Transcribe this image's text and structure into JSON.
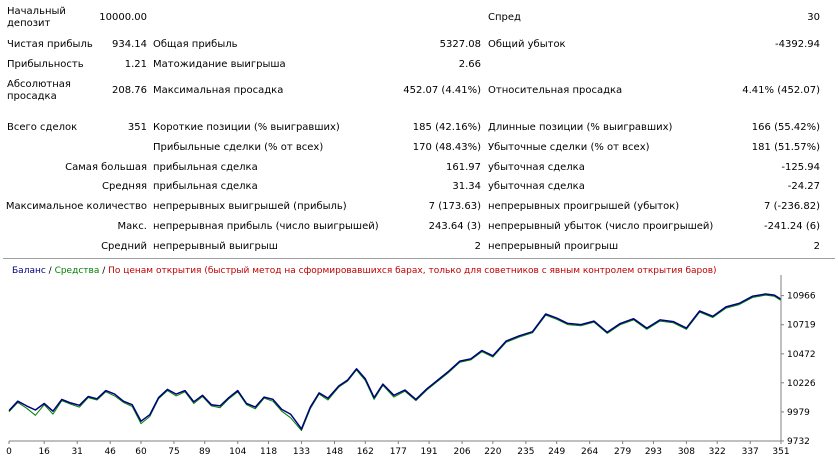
{
  "report": {
    "initial_deposit": {
      "label": "Начальный депозит",
      "value": "10000.00"
    },
    "spread": {
      "label": "Спред",
      "value": "30"
    },
    "net_profit": {
      "label": "Чистая прибыль",
      "value": "934.14"
    },
    "gross_profit": {
      "label": "Общая прибыль",
      "value": "5327.08"
    },
    "gross_loss": {
      "label": "Общий убыток",
      "value": "-4392.94"
    },
    "profit_factor": {
      "label": "Прибыльность",
      "value": "1.21"
    },
    "expected_payoff": {
      "label": "Матожидание выигрыша",
      "value": "2.66"
    },
    "absolute_drawdown": {
      "label": "Абсолютная просадка",
      "value": "208.76"
    },
    "maximal_drawdown": {
      "label": "Максимальная просадка",
      "value": "452.07 (4.41%)"
    },
    "relative_drawdown": {
      "label": "Относительная просадка",
      "value": "4.41% (452.07)"
    },
    "total_trades": {
      "label": "Всего сделок",
      "value": "351"
    },
    "short_positions": {
      "label": "Короткие позиции (% выигравших)",
      "value": "185 (42.16%)"
    },
    "long_positions": {
      "label": "Длинные позиции (% выигравших)",
      "value": "166 (55.42%)"
    },
    "profit_trades": {
      "label": "Прибыльные сделки (% от всех)",
      "value": "170 (48.43%)"
    },
    "loss_trades": {
      "label": "Убыточные сделки (% от всех)",
      "value": "181 (51.57%)"
    },
    "largest": {
      "label": "Самая большая",
      "profit_label": "прибыльная сделка",
      "profit_value": "161.97",
      "loss_label": "убыточная сделка",
      "loss_value": "-125.94"
    },
    "average": {
      "label": "Средняя",
      "profit_label": "прибыльная сделка",
      "profit_value": "31.34",
      "loss_label": "убыточная сделка",
      "loss_value": "-24.27"
    },
    "maximum_consecutive": {
      "label": "Максимальное количество",
      "wins_label": "непрерывных выигрышей (прибыль)",
      "wins_value": "7 (173.63)",
      "losses_label": "непрерывных проигрышей (убыток)",
      "losses_value": "7 (-236.82)"
    },
    "maximal_consecutive": {
      "label": "Макс.",
      "profit_label": "непрерывная прибыль (число выигрышей)",
      "profit_value": "243.64 (3)",
      "loss_label": "непрерывный убыток (число проигрышей)",
      "loss_value": "-241.24 (6)"
    },
    "average_consecutive": {
      "label": "Средний",
      "wins_label": "непрерывный выигрыш",
      "wins_value": "2",
      "losses_label": "непрерывный проигрыш",
      "losses_value": "2"
    }
  },
  "colors": {
    "balance": "#000080",
    "equity": "#008000",
    "note": "#c00000",
    "axis": "#808080"
  },
  "chart_data": {
    "type": "line",
    "legend": {
      "balance": "Баланс",
      "separator1": " / ",
      "equity": "Средства",
      "separator2": " / ",
      "note": "По ценам открытия (быстрый метод на сформировавшихся барах, только для советников с явным контролем открытия баров)"
    },
    "x_ticks": [
      0,
      16,
      31,
      46,
      60,
      75,
      89,
      104,
      118,
      133,
      148,
      162,
      177,
      191,
      206,
      220,
      235,
      249,
      264,
      279,
      293,
      308,
      322,
      337,
      351
    ],
    "x_tick_labels": [
      "0",
      "16",
      "31",
      "46",
      "60",
      "75",
      "89",
      "104",
      "118",
      "133",
      "148",
      "162",
      "177",
      "191",
      "206",
      "220",
      "235",
      "249",
      "264",
      "279",
      "293",
      "308",
      "322",
      "337",
      "351"
    ],
    "xlim": [
      0,
      351
    ],
    "y_ticks": [
      9732,
      9979,
      10226,
      10472,
      10719,
      10966
    ],
    "y_tick_labels": [
      "9732",
      "9979",
      "10226",
      "10472",
      "10719",
      "10966"
    ],
    "ylim": [
      9732,
      11090
    ],
    "series": [
      {
        "key": "balance",
        "x": [
          0,
          4,
          8,
          12,
          16,
          20,
          24,
          28,
          32,
          36,
          40,
          44,
          48,
          52,
          56,
          60,
          64,
          68,
          72,
          76,
          80,
          84,
          88,
          92,
          96,
          100,
          104,
          108,
          112,
          116,
          120,
          124,
          128,
          133,
          137,
          141,
          145,
          150,
          154,
          158,
          162,
          166,
          170,
          175,
          180,
          185,
          190,
          195,
          200,
          205,
          210,
          215,
          220,
          226,
          232,
          238,
          244,
          249,
          254,
          260,
          266,
          272,
          278,
          284,
          290,
          296,
          302,
          308,
          314,
          320,
          326,
          332,
          338,
          344,
          348,
          351
        ],
        "y": [
          9990,
          10070,
          10030,
          9995,
          10050,
          9985,
          10085,
          10055,
          10035,
          10110,
          10090,
          10160,
          10130,
          10070,
          10040,
          9900,
          9955,
          10100,
          10170,
          10130,
          10160,
          10065,
          10120,
          10040,
          10030,
          10100,
          10160,
          10050,
          10020,
          10105,
          10085,
          10000,
          9960,
          9835,
          10020,
          10140,
          10095,
          10200,
          10250,
          10345,
          10260,
          10100,
          10215,
          10120,
          10165,
          10085,
          10175,
          10250,
          10325,
          10410,
          10430,
          10500,
          10455,
          10580,
          10625,
          10660,
          10810,
          10775,
          10730,
          10720,
          10750,
          10655,
          10730,
          10770,
          10690,
          10760,
          10745,
          10690,
          10835,
          10790,
          10870,
          10900,
          10960,
          10980,
          10970,
          10935
        ]
      },
      {
        "key": "equity",
        "x": [
          0,
          4,
          8,
          12,
          16,
          20,
          24,
          28,
          32,
          36,
          40,
          44,
          48,
          52,
          56,
          60,
          64,
          68,
          72,
          76,
          80,
          84,
          88,
          92,
          96,
          100,
          104,
          108,
          112,
          116,
          120,
          124,
          128,
          133,
          137,
          141,
          145,
          150,
          154,
          158,
          162,
          166,
          170,
          175,
          180,
          185,
          190,
          195,
          200,
          205,
          210,
          215,
          220,
          226,
          232,
          238,
          244,
          249,
          254,
          260,
          266,
          272,
          278,
          284,
          290,
          296,
          302,
          308,
          314,
          320,
          326,
          332,
          338,
          344,
          348,
          351
        ],
        "y": [
          9980,
          10060,
          10010,
          9950,
          10040,
          9960,
          10075,
          10045,
          10020,
          10100,
          10080,
          10150,
          10115,
          10060,
          10025,
          9880,
          9940,
          10090,
          10160,
          10115,
          10150,
          10050,
          10110,
          10030,
          10015,
          10090,
          10150,
          10040,
          10005,
          10095,
          10070,
          9985,
          9930,
          9820,
          10005,
          10130,
          10080,
          10190,
          10240,
          10335,
          10245,
          10085,
          10205,
          10105,
          10155,
          10075,
          10165,
          10240,
          10315,
          10400,
          10420,
          10490,
          10445,
          10570,
          10615,
          10650,
          10800,
          10765,
          10720,
          10710,
          10740,
          10645,
          10720,
          10760,
          10680,
          10750,
          10735,
          10680,
          10825,
          10780,
          10860,
          10890,
          10950,
          10970,
          10960,
          10925
        ]
      }
    ]
  }
}
